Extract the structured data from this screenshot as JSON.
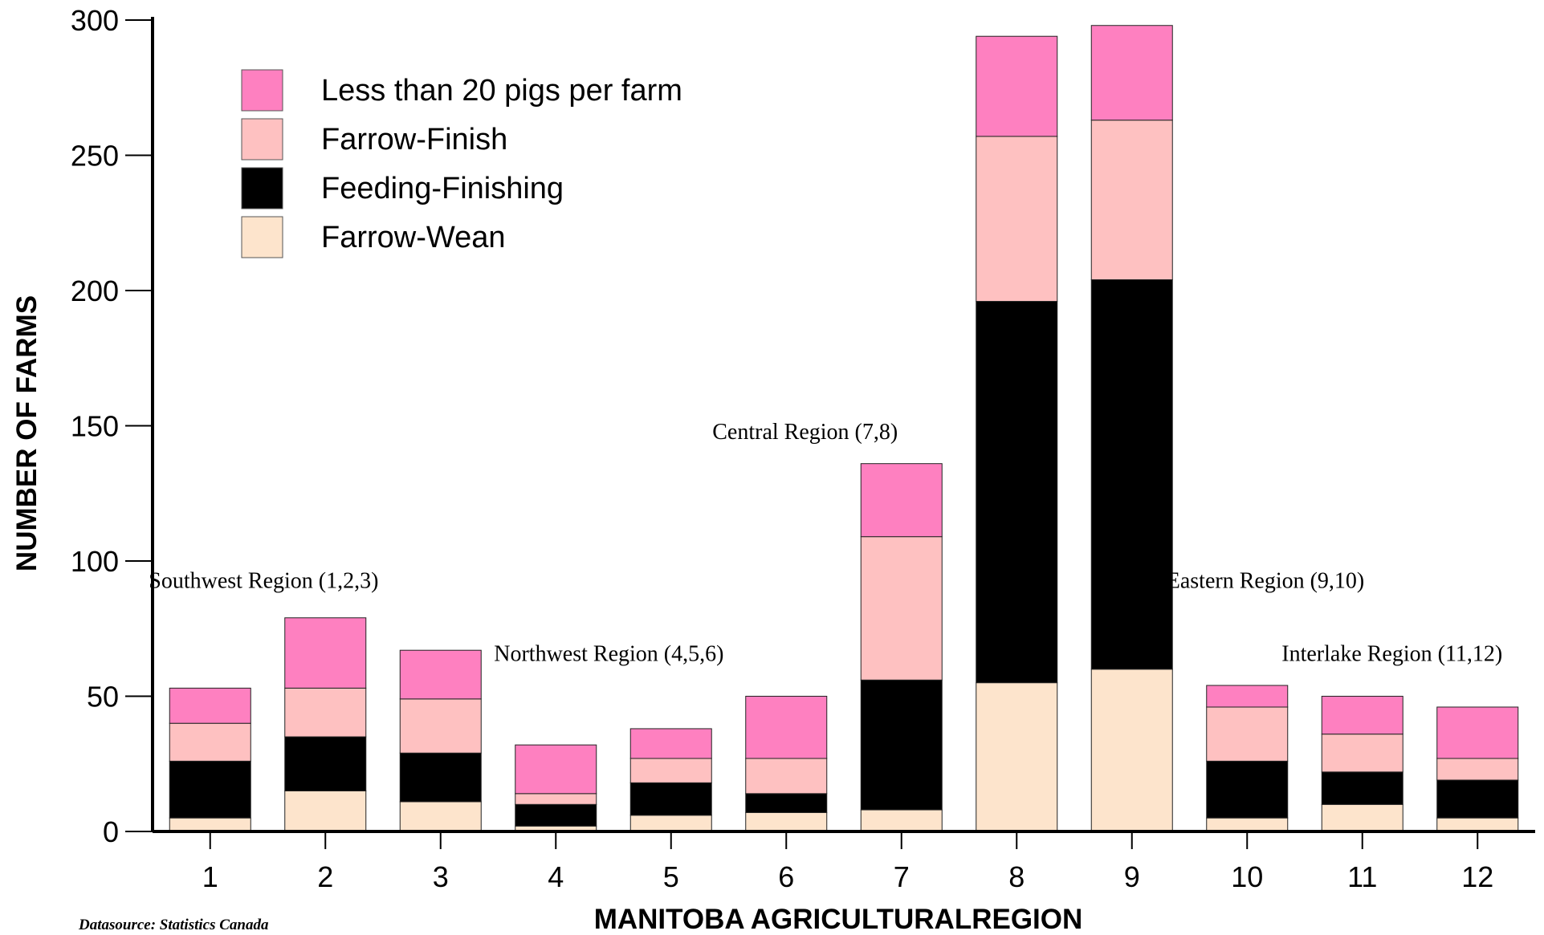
{
  "chart_data": {
    "type": "bar",
    "stacked": true,
    "categories": [
      "1",
      "2",
      "3",
      "4",
      "5",
      "6",
      "7",
      "8",
      "9",
      "10",
      "11",
      "12"
    ],
    "series": [
      {
        "name": "Farrow-Wean",
        "color": "#fde4cc",
        "values": [
          5,
          15,
          11,
          2,
          6,
          7,
          8,
          55,
          60,
          5,
          10,
          5
        ]
      },
      {
        "name": "Feeding-Finishing",
        "color": "#000000",
        "values": [
          21,
          20,
          18,
          8,
          12,
          7,
          48,
          141,
          144,
          21,
          12,
          14
        ]
      },
      {
        "name": "Farrow-Finish",
        "color": "#fec1c1",
        "values": [
          14,
          18,
          20,
          4,
          9,
          13,
          53,
          61,
          59,
          20,
          14,
          8
        ]
      },
      {
        "name": "Less than 20 pigs per farm",
        "color": "#fe80c0",
        "values": [
          13,
          26,
          18,
          18,
          11,
          23,
          27,
          37,
          35,
          8,
          14,
          19
        ]
      }
    ],
    "legend_order": [
      "Less than 20 pigs per farm",
      "Farrow-Finish",
      "Feeding-Finishing",
      "Farrow-Wean"
    ],
    "legend_position": "top-left",
    "xlabel": "MANITOBA AGRICULTURALREGION",
    "ylabel": "NUMBER OF FARMS",
    "ylim": [
      0,
      300
    ],
    "yticks": [
      0,
      50,
      100,
      150,
      200,
      250,
      300
    ],
    "grid": false,
    "annotations": [
      {
        "text": "Southwest Region (1,2,3)",
        "near_category": "1",
        "at_value": 93
      },
      {
        "text": "Northwest Region (4,5,6)",
        "near_category": "5",
        "at_value": 66
      },
      {
        "text": "Central Region (7,8)",
        "near_category": "7",
        "at_value": 148
      },
      {
        "text": "Eastern Region (9,10)",
        "near_category": "10",
        "at_value": 93
      },
      {
        "text": "Interlake Region (11,12)",
        "near_category": "11",
        "at_value": 66
      }
    ]
  },
  "source_note": "Datasource: Statistics Canada"
}
